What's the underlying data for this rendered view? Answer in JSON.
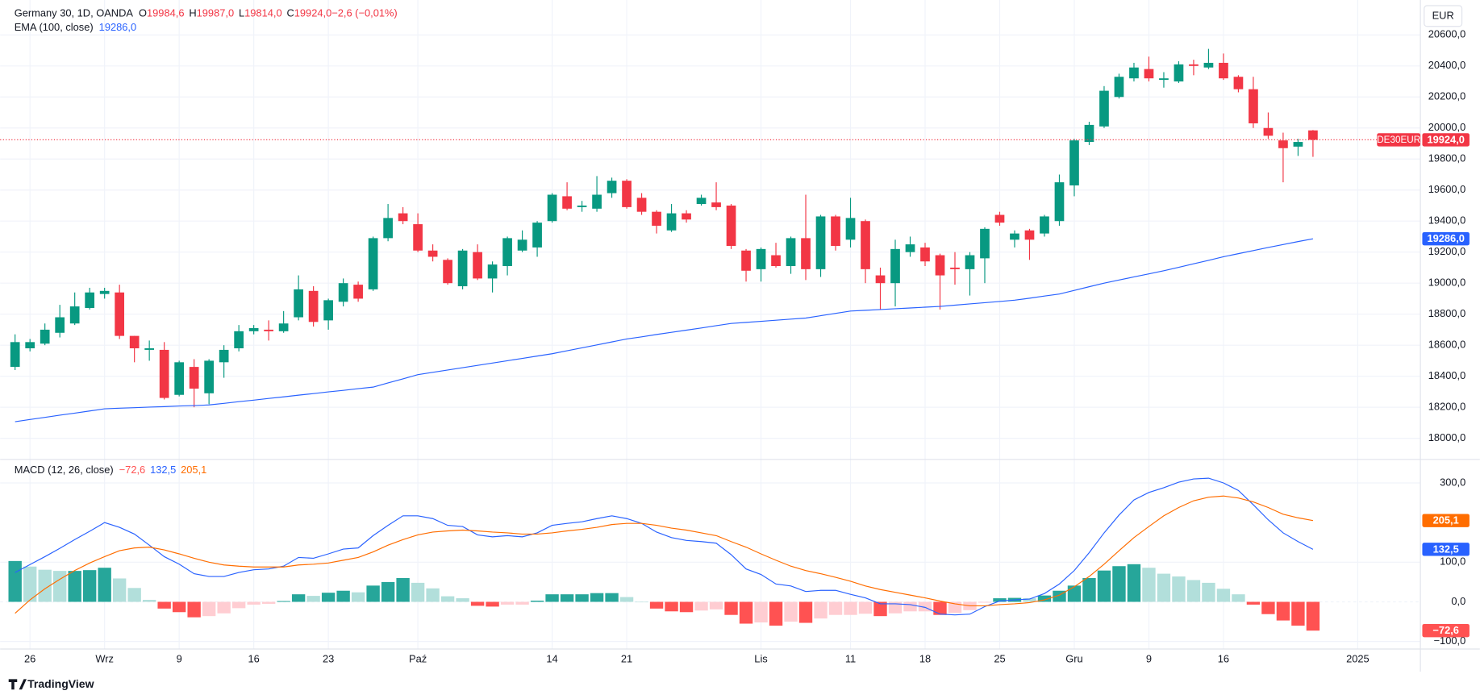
{
  "chart_data": [
    {
      "type": "candlestick",
      "legend_title": "Germany 30, 1D, OANDA",
      "legend_values": [
        {
          "key": "O",
          "value": "19984,6"
        },
        {
          "key": "H",
          "value": "19987,0"
        },
        {
          "key": "L",
          "value": "19814,0"
        },
        {
          "key": "C",
          "value": "19924,0"
        },
        {
          "key": "",
          "value": "−2,6 (−0,01%)"
        }
      ],
      "currency": "EUR",
      "symbol_tag": "DE30EUR",
      "last_price_label": "19924,0",
      "up_color": "#089981",
      "down_color": "#f23645",
      "x": [
        0,
        1,
        2,
        3,
        4,
        5,
        6,
        7,
        8,
        9,
        10,
        11,
        12,
        13,
        14,
        15,
        16,
        17,
        18,
        19,
        20,
        21,
        22,
        23,
        24,
        25,
        26,
        27,
        28,
        29,
        30,
        31,
        32,
        33,
        34,
        35,
        36,
        37,
        38,
        39,
        40,
        41,
        42,
        43,
        44,
        45,
        46,
        47,
        48,
        49,
        50,
        51,
        52,
        53,
        54,
        55,
        56,
        57,
        58,
        59,
        60,
        61,
        62,
        63,
        64,
        65,
        66,
        67,
        68,
        69,
        70,
        71,
        72,
        73,
        74,
        75,
        76,
        77,
        78,
        79,
        80,
        81,
        82,
        83,
        84,
        85,
        86,
        87
      ],
      "open": [
        18460,
        18580,
        18610,
        18680,
        18740,
        18840,
        18930,
        18940,
        18660,
        18570,
        18570,
        18280,
        18460,
        18290,
        18490,
        18580,
        18690,
        18700,
        18690,
        18780,
        18950,
        18760,
        18880,
        18990,
        18960,
        19290,
        19450,
        19380,
        19210,
        19150,
        18980,
        19200,
        19030,
        19110,
        19210,
        19230,
        19400,
        19560,
        19490,
        19480,
        19580,
        19660,
        19550,
        19460,
        19340,
        19450,
        19510,
        19520,
        19500,
        19210,
        19090,
        19180,
        19110,
        19290,
        19090,
        19430,
        19280,
        19400,
        19050,
        19000,
        19200,
        19230,
        19180,
        19100,
        19090,
        19160,
        19440,
        19280,
        19340,
        19320,
        19400,
        19630,
        19910,
        20010,
        20200,
        20320,
        20380,
        20310,
        20300,
        20410,
        20390,
        20420,
        20330,
        20250,
        20000,
        19920,
        19880,
        19984.6
      ],
      "high": [
        18670,
        18640,
        18740,
        18860,
        18940,
        18970,
        18970,
        18990,
        18660,
        18630,
        18620,
        18500,
        18510,
        18510,
        18600,
        18730,
        18730,
        18760,
        18820,
        19050,
        18980,
        18900,
        19030,
        19010,
        19300,
        19510,
        19490,
        19450,
        19250,
        19160,
        19220,
        19250,
        19140,
        19300,
        19340,
        19400,
        19580,
        19650,
        19530,
        19690,
        19680,
        19670,
        19580,
        19470,
        19510,
        19470,
        19570,
        19650,
        19510,
        19220,
        19230,
        19260,
        19300,
        19570,
        19440,
        19440,
        19550,
        19410,
        19100,
        19280,
        19300,
        19260,
        19190,
        19200,
        19200,
        19360,
        19460,
        19340,
        19350,
        19440,
        19700,
        19930,
        20040,
        20270,
        20350,
        20420,
        20460,
        20360,
        20430,
        20440,
        20510,
        20480,
        20340,
        20330,
        20100,
        19970,
        19930,
        19987
      ],
      "low": [
        18440,
        18560,
        18600,
        18650,
        18730,
        18830,
        18900,
        18640,
        18490,
        18500,
        18250,
        18270,
        18200,
        18220,
        18390,
        18560,
        18670,
        18630,
        18680,
        18760,
        18720,
        18700,
        18850,
        18880,
        18950,
        19270,
        19380,
        19200,
        19140,
        18990,
        18960,
        19020,
        18940,
        19050,
        19200,
        19170,
        19390,
        19470,
        19460,
        19460,
        19550,
        19480,
        19440,
        19320,
        19330,
        19390,
        19500,
        19470,
        19220,
        19010,
        19010,
        19100,
        19060,
        19020,
        19040,
        19210,
        19230,
        19000,
        18830,
        18850,
        19170,
        19110,
        18830,
        18990,
        18920,
        19000,
        19370,
        19230,
        19150,
        19300,
        19370,
        19560,
        19890,
        20000,
        20190,
        20300,
        20300,
        20260,
        20290,
        20340,
        20380,
        20310,
        20230,
        20000,
        19930,
        19650,
        19820,
        19814
      ],
      "close": [
        18620,
        18620,
        18700,
        18780,
        18850,
        18940,
        18950,
        18660,
        18580,
        18580,
        18260,
        18490,
        18320,
        18500,
        18570,
        18690,
        18710,
        18690,
        18740,
        18960,
        18750,
        18890,
        19000,
        18900,
        19290,
        19420,
        19400,
        19210,
        19170,
        19000,
        19210,
        19030,
        19120,
        19290,
        19280,
        19390,
        19570,
        19480,
        19500,
        19570,
        19660,
        19490,
        19460,
        19370,
        19450,
        19410,
        19550,
        19490,
        19240,
        19080,
        19220,
        19110,
        19290,
        19090,
        19430,
        19240,
        19420,
        19090,
        19000,
        19220,
        19250,
        19140,
        19050,
        19090,
        19180,
        19350,
        19390,
        19320,
        19280,
        19430,
        19650,
        19920,
        20020,
        20240,
        20330,
        20390,
        20320,
        20320,
        20410,
        20400,
        20420,
        20320,
        20250,
        20030,
        19950,
        19870,
        19910,
        19924
      ],
      "ema": {
        "name": "EMA (100, close)",
        "color": "#2962ff",
        "last_label": "19286,0",
        "values": [
          18107,
          18121,
          18135,
          18149,
          18162,
          18176,
          18190,
          18194,
          18197,
          18201,
          18204,
          18208,
          18211,
          18215,
          18225,
          18236,
          18246,
          18257,
          18267,
          18278,
          18288,
          18299,
          18309,
          18320,
          18330,
          18357,
          18383,
          18410,
          18425,
          18440,
          18455,
          18470,
          18485,
          18500,
          18515,
          18530,
          18545,
          18564,
          18583,
          18602,
          18621,
          18640,
          18654,
          18669,
          18683,
          18697,
          18711,
          18726,
          18740,
          18747,
          18754,
          18761,
          18768,
          18775,
          18790,
          18805,
          18820,
          18825,
          18830,
          18835,
          18840,
          18845,
          18850,
          18858,
          18866,
          18874,
          18882,
          18890,
          18903,
          18917,
          18930,
          18953,
          18977,
          19000,
          19020,
          19040,
          19060,
          19080,
          19102,
          19125,
          19147,
          19170,
          19190,
          19210,
          19230,
          19249,
          19268,
          19286
        ]
      },
      "xlim": [
        -1,
        94.2
      ],
      "xticks": [
        {
          "value": 1,
          "label": "26"
        },
        {
          "value": 6,
          "label": "Wrz"
        },
        {
          "value": 11,
          "label": "9"
        },
        {
          "value": 16,
          "label": "16"
        },
        {
          "value": 21,
          "label": "23"
        },
        {
          "value": 27,
          "label": "Paź"
        },
        {
          "value": 36,
          "label": "14"
        },
        {
          "value": 41,
          "label": "21"
        },
        {
          "value": 50,
          "label": "Lis"
        },
        {
          "value": 56,
          "label": "11"
        },
        {
          "value": 61,
          "label": "18"
        },
        {
          "value": 66,
          "label": "25"
        },
        {
          "value": 71,
          "label": "Gru"
        },
        {
          "value": 76,
          "label": "9"
        },
        {
          "value": 81,
          "label": "16"
        },
        {
          "value": 90,
          "label": "2025"
        }
      ],
      "ylim": [
        17870,
        20825
      ],
      "yticks": [
        {
          "value": 18000,
          "label": "18000,0"
        },
        {
          "value": 18200,
          "label": "18200,0"
        },
        {
          "value": 18400,
          "label": "18400,0"
        },
        {
          "value": 18600,
          "label": "18600,0"
        },
        {
          "value": 18800,
          "label": "18800,0"
        },
        {
          "value": 19000,
          "label": "19000,0"
        },
        {
          "value": 19200,
          "label": "19200,0"
        },
        {
          "value": 19400,
          "label": "19400,0"
        },
        {
          "value": 19600,
          "label": "19600,0"
        },
        {
          "value": 19800,
          "label": "19800,0"
        },
        {
          "value": 20000,
          "label": "20000,0"
        },
        {
          "value": 20200,
          "label": "20200,0"
        },
        {
          "value": 20400,
          "label": "20400,0"
        },
        {
          "value": 20600,
          "label": "20600,0"
        }
      ],
      "grid": true
    },
    {
      "type": "macd",
      "title": "MACD (12, 26, close)",
      "histogram": {
        "last_label": "−72,6",
        "colors": {
          "up_grow": "#26a69a",
          "up_fall": "#b2dfdb",
          "down_grow": "#ff5252",
          "down_fall": "#ffcdd2"
        },
        "values": [
          103,
          89,
          81,
          78,
          78,
          80,
          86,
          59,
          35,
          5,
          -17,
          -26,
          -39,
          -36,
          -29,
          -16,
          -7,
          -5,
          2,
          19,
          15,
          23,
          28,
          24,
          41,
          50,
          60,
          48,
          34,
          14,
          9,
          -10,
          -12,
          -7,
          -7,
          3,
          19,
          19,
          19,
          22,
          22,
          12,
          0,
          -17,
          -24,
          -26,
          -22,
          -19,
          -33,
          -55,
          -52,
          -60,
          -50,
          -53,
          -42,
          -33,
          -33,
          -30,
          -36,
          -29,
          -24,
          -24,
          -33,
          -28,
          -21,
          -2,
          9,
          10,
          9,
          16,
          28,
          41,
          60,
          79,
          90,
          95,
          86,
          71,
          64,
          55,
          48,
          33,
          19,
          -7,
          -31,
          -47,
          -60,
          -72.6
        ]
      },
      "macd": {
        "color": "#2962ff",
        "last_label": "132,5",
        "values": [
          74,
          94,
          114,
          135,
          157,
          178,
          200,
          188,
          171,
          143,
          114,
          95,
          71,
          64,
          64,
          74,
          81,
          83,
          90,
          112,
          110,
          121,
          133,
          136,
          167,
          193,
          217,
          217,
          210,
          193,
          190,
          169,
          164,
          167,
          164,
          174,
          193,
          198,
          202,
          210,
          217,
          210,
          198,
          176,
          162,
          155,
          152,
          148,
          119,
          83,
          69,
          45,
          40,
          26,
          29,
          29,
          19,
          10,
          -5,
          -5,
          -7,
          -14,
          -31,
          -33,
          -31,
          -12,
          2,
          5,
          7,
          21,
          45,
          79,
          124,
          174,
          219,
          257,
          276,
          288,
          302,
          310,
          312,
          300,
          281,
          245,
          207,
          174,
          152,
          132.5
        ]
      },
      "signal": {
        "color": "#ff6d00",
        "last_label": "205,1",
        "values": [
          -29,
          5,
          33,
          57,
          79,
          98,
          114,
          129,
          136,
          138,
          131,
          121,
          110,
          100,
          93,
          90,
          88,
          88,
          88,
          93,
          95,
          98,
          105,
          112,
          126,
          143,
          157,
          169,
          176,
          179,
          181,
          179,
          176,
          174,
          171,
          171,
          174,
          179,
          183,
          188,
          195,
          198,
          198,
          193,
          186,
          181,
          174,
          167,
          152,
          138,
          121,
          105,
          90,
          79,
          71,
          62,
          52,
          40,
          31,
          24,
          17,
          10,
          2,
          -5,
          -10,
          -10,
          -7,
          -5,
          -2,
          5,
          17,
          38,
          64,
          95,
          129,
          162,
          190,
          217,
          238,
          255,
          264,
          267,
          262,
          252,
          238,
          221,
          212,
          205.1
        ]
      },
      "ylim": [
        -119,
        357
      ],
      "yticks": [
        {
          "value": -100,
          "label": "−100,0"
        },
        {
          "value": 0,
          "label": "0,0"
        },
        {
          "value": 100,
          "label": "100,0"
        },
        {
          "value": 300,
          "label": "300,0"
        }
      ],
      "grid": true
    },
    {
      "type": "footer",
      "brand": "TradingView"
    }
  ]
}
